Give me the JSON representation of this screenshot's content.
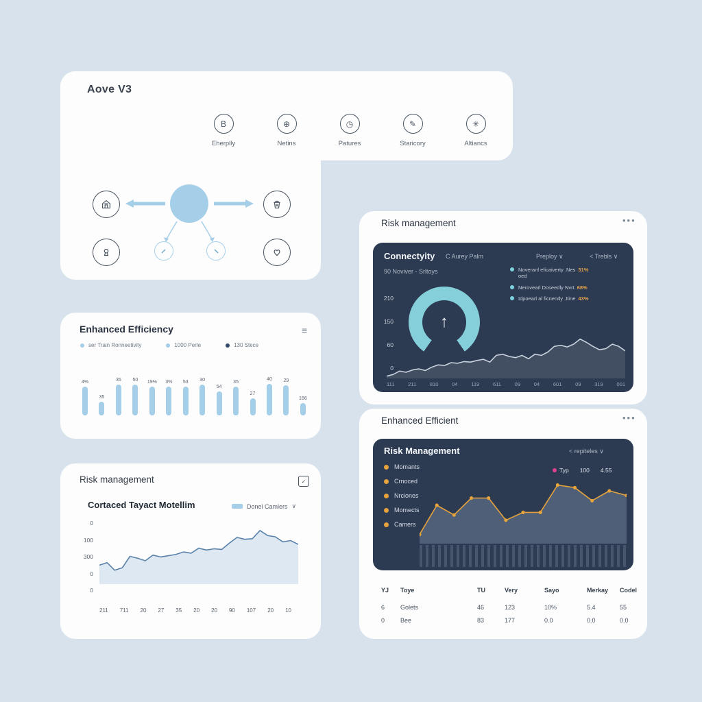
{
  "hero": {
    "title": "Aove V3",
    "features": [
      {
        "icon": "badge-b-icon",
        "glyph": "B",
        "label": "Eherplly"
      },
      {
        "icon": "globe-icon",
        "glyph": "⊕",
        "label": "Netins"
      },
      {
        "icon": "clock-icon",
        "glyph": "◷",
        "label": "Patures"
      },
      {
        "icon": "pen-icon",
        "glyph": "✎",
        "label": "Staricory"
      },
      {
        "icon": "asterisk-icon",
        "glyph": "✳",
        "label": "Altiancs"
      }
    ],
    "hub_arrow_color": "#a5cfe9"
  },
  "efficiency": {
    "title": "Enhanced Efficiency",
    "menu_glyph": "≡",
    "legend": [
      {
        "color": "#a5cfe9",
        "label": "ser Train Ronneetivity"
      },
      {
        "color": "#a5cfe9",
        "label": "1000 Perle"
      },
      {
        "color": "#2e4a66",
        "label": "130 Stece"
      }
    ]
  },
  "risk_left": {
    "title": "Risk management",
    "checkbox_glyph": "✓",
    "subtitle": "Cortaced Tayact Motellim",
    "legend_label": "Donel Camlers",
    "legend_caret": "∨"
  },
  "connectivity": {
    "card_title": "Risk management",
    "menu_glyph": "•••",
    "panel_title": "Connectyity",
    "controls": [
      "C Aurey Palm",
      "Preploy ∨",
      "< Trebls ∨"
    ],
    "subheading": "90 Noviver - Srltoys",
    "legend": [
      {
        "label": "Noveranl eficaiverty .Nes",
        "label2": "oed",
        "value": "31%"
      },
      {
        "label": "Nerovearl Doseedly Nvrt",
        "label2": "",
        "value": "68%"
      },
      {
        "label": "Idpoearl al ficnendy .Itine",
        "label2": "",
        "value": "43%"
      }
    ],
    "gauge_arrow": "↑"
  },
  "risk_right": {
    "card_title": "Enhanced Efficient",
    "menu_glyph": "•••",
    "panel_title": "Risk Management",
    "control": "< repiteles ∨",
    "items": [
      "Momants",
      "Crnoced",
      "Nrciones",
      "Momects",
      "Camers"
    ],
    "stat_label": "Typ",
    "stat_values": [
      "100",
      "4.55"
    ],
    "table": {
      "headers": [
        "YJ",
        "Toye",
        "TU",
        "Very",
        "Sayo",
        "Merkay",
        "Codel"
      ],
      "rows": [
        [
          "6",
          "Golets",
          "46",
          "123",
          "10%",
          "5.4",
          "55"
        ],
        [
          "0",
          "Bee",
          "83",
          "177",
          "0.0",
          "0.0",
          "0.0"
        ]
      ]
    }
  },
  "chart_data": [
    {
      "id": "efficiency-bars",
      "type": "bar",
      "title": "Enhanced Efficiency",
      "legend": [
        "ser Train Ronneetivity",
        "1000 Perle",
        "130 Stece"
      ],
      "labels": [
        "4%",
        "35",
        "35",
        "50",
        "19%",
        "3%",
        "53",
        "30",
        "54",
        "35",
        "27",
        "40",
        "29",
        "166"
      ],
      "values": [
        42,
        20,
        45,
        45,
        42,
        42,
        42,
        45,
        35,
        42,
        25,
        46,
        44,
        18
      ],
      "bar_color": "#a5cfe9",
      "grid": false
    },
    {
      "id": "contracted-area",
      "type": "area",
      "title": "Cortaced Tayact Motellim",
      "legend": [
        "Donel Camlers"
      ],
      "y_ticks": [
        "0",
        "100",
        "300",
        "0",
        "0"
      ],
      "x_ticks": [
        "211",
        "711",
        "20",
        "27",
        "35",
        "20",
        "20",
        "90",
        "107",
        "20",
        "10"
      ],
      "values": [
        30,
        34,
        22,
        26,
        44,
        41,
        37,
        46,
        43,
        45,
        47,
        51,
        49,
        57,
        54,
        56,
        55,
        65,
        74,
        71,
        72,
        85,
        77,
        75,
        67,
        69,
        63
      ],
      "ylim": [
        0,
        100
      ],
      "line_color": "#5b82aa",
      "fill_color": "#dde8f2",
      "grid": false,
      "legend_position": "top-right"
    },
    {
      "id": "connectivity-area",
      "type": "area",
      "title": "Connectyity",
      "y_ticks": [
        "210",
        "150",
        "60",
        "0"
      ],
      "x_ticks": [
        "111",
        "211",
        "810",
        "04",
        "119",
        "611",
        "09",
        "04",
        "601",
        "09",
        "319",
        "001"
      ],
      "values": [
        4,
        7,
        13,
        11,
        15,
        17,
        14,
        20,
        24,
        23,
        28,
        27,
        30,
        29,
        32,
        34,
        29,
        41,
        43,
        39,
        37,
        41,
        35,
        43,
        41,
        47,
        57,
        59,
        56,
        61,
        70,
        64,
        57,
        51,
        53,
        61,
        57,
        49
      ],
      "ylim": [
        0,
        100
      ],
      "line_color": "#c9d3de",
      "fill_color": "rgba(255,255,255,0.10)",
      "grid": false,
      "legend_entries": [
        "Noveranl eficaiverty .Nes oed 31%",
        "Nerovearl Doseedly Nvrt 68%",
        "Idpoearl al ficnendy .Itine 43%"
      ],
      "legend_position": "top-right"
    },
    {
      "id": "risk-line",
      "type": "line",
      "title": "Risk Management",
      "values": [
        14,
        59,
        44,
        70,
        70,
        36,
        48,
        48,
        90,
        86,
        66,
        81,
        74
      ],
      "ylim": [
        0,
        100
      ],
      "line_color": "#e6a23c",
      "fill_color": "rgba(120,140,165,0.45)",
      "markers": true,
      "grid": false
    }
  ]
}
